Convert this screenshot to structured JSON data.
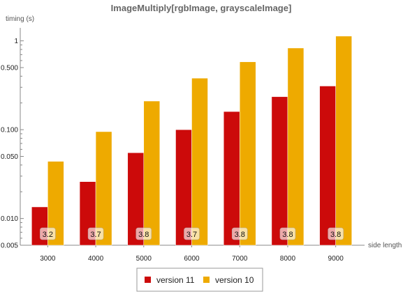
{
  "chart_data": {
    "type": "bar",
    "title": "ImageMultiply[rgbImage, grayscaleImage]",
    "ylabel": "timing (s)",
    "xlabel": "side length",
    "yscale": "log",
    "ylim": [
      0.005,
      1.4
    ],
    "yticks": [
      0.005,
      0.01,
      0.05,
      0.1,
      0.5,
      1
    ],
    "ytick_labels": [
      "0.005",
      "0.010",
      "0.050",
      "0.100",
      "0.500",
      "1"
    ],
    "categories": [
      "3000",
      "4000",
      "5000",
      "6000",
      "7000",
      "8000",
      "9000"
    ],
    "series": [
      {
        "name": "version 11",
        "color": "#cc0a0a",
        "values": [
          0.0135,
          0.026,
          0.055,
          0.1,
          0.16,
          0.235,
          0.31
        ]
      },
      {
        "name": "version 10",
        "color": "#eeaa00",
        "values": [
          0.044,
          0.095,
          0.21,
          0.38,
          0.58,
          0.83,
          1.13
        ]
      }
    ],
    "annotations": [
      "3.2",
      "3.7",
      "3.8",
      "3.7",
      "3.8",
      "3.8",
      "3.8"
    ],
    "grid": false,
    "legend": "bottom"
  }
}
